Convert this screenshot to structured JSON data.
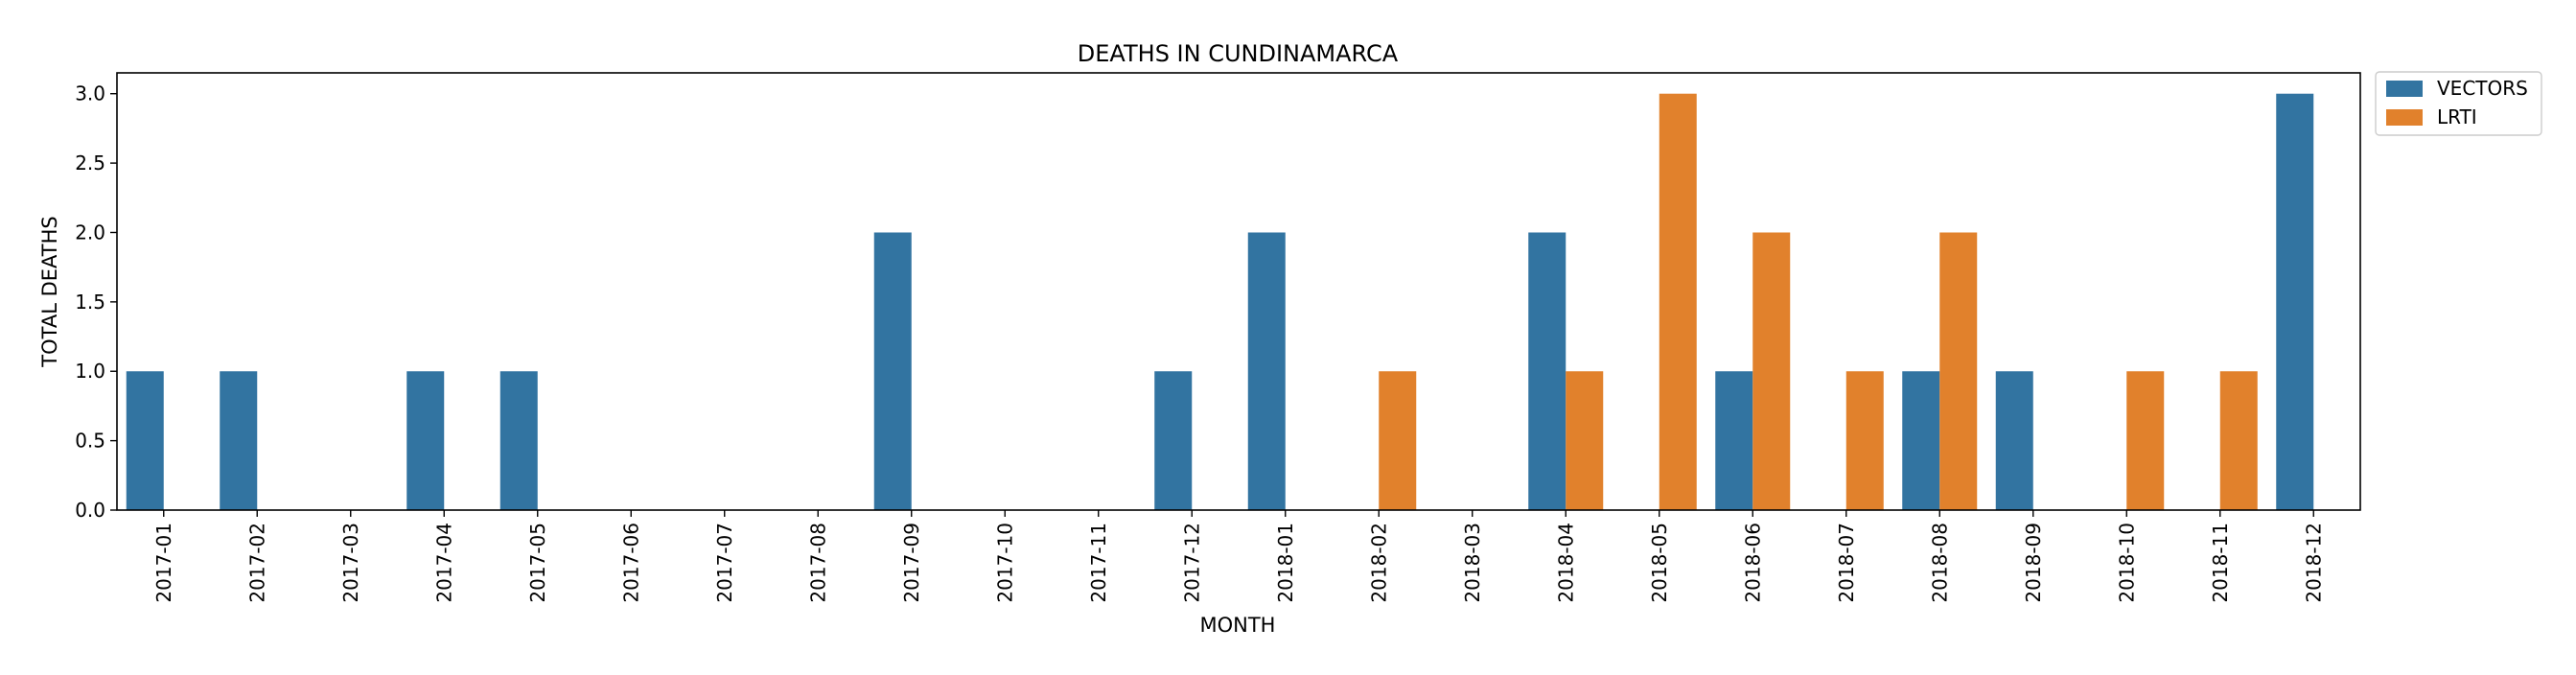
{
  "chart_data": {
    "type": "bar",
    "title": "DEATHS IN CUNDINAMARCA",
    "xlabel": "MONTH",
    "ylabel": "TOTAL DEATHS",
    "ylim": [
      0,
      3.15
    ],
    "yticks": [
      "0.0",
      "0.5",
      "1.0",
      "1.5",
      "2.0",
      "2.5",
      "3.0"
    ],
    "categories": [
      "2017-01",
      "2017-02",
      "2017-03",
      "2017-04",
      "2017-05",
      "2017-06",
      "2017-07",
      "2017-08",
      "2017-09",
      "2017-10",
      "2017-11",
      "2017-12",
      "2018-01",
      "2018-02",
      "2018-03",
      "2018-04",
      "2018-05",
      "2018-06",
      "2018-07",
      "2018-08",
      "2018-09",
      "2018-10",
      "2018-11",
      "2018-12"
    ],
    "series": [
      {
        "name": "VECTORS",
        "color": "#3274a1",
        "values": [
          1,
          1,
          0,
          1,
          1,
          0,
          0,
          0,
          2,
          0,
          0,
          1,
          2,
          0,
          0,
          2,
          0,
          1,
          0,
          1,
          1,
          0,
          0,
          3
        ]
      },
      {
        "name": "LRTI",
        "color": "#e1812c",
        "values": [
          0,
          0,
          0,
          0,
          0,
          0,
          0,
          0,
          0,
          0,
          0,
          0,
          0,
          1,
          0,
          1,
          3,
          2,
          1,
          2,
          0,
          1,
          1,
          0
        ]
      }
    ],
    "legend": "outside-top-right",
    "grid": false
  }
}
